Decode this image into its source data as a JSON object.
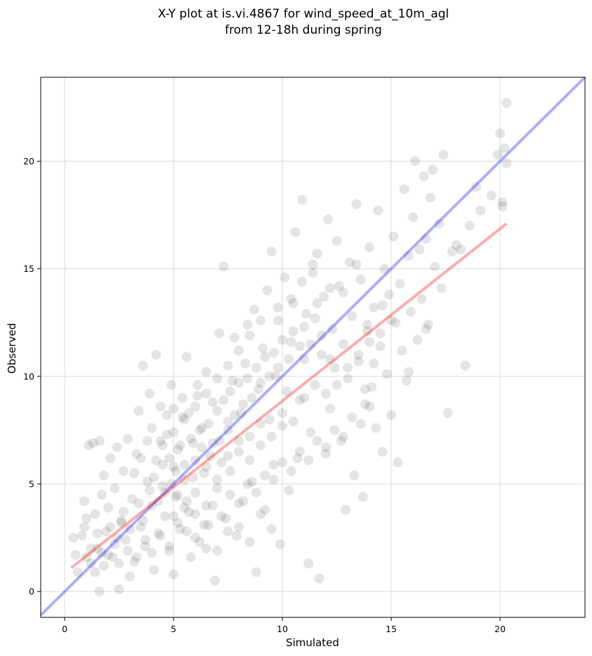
{
  "chart_data": {
    "type": "scatter",
    "title_lines": [
      "X-Y plot at is.vi.4867 for wind_speed_at_10m_agl",
      "from 12-18h during spring"
    ],
    "xlabel": "Simulated",
    "ylabel": "Observed",
    "xlim": [
      -1.1,
      23.9
    ],
    "ylim": [
      -1.2,
      23.9
    ],
    "xticks": [
      0,
      5,
      10,
      15,
      20
    ],
    "yticks": [
      0,
      5,
      10,
      15,
      20
    ],
    "grid": true,
    "point_color": "#000000",
    "point_opacity": 0.1,
    "one_to_one_line": {
      "x": [
        -1.1,
        23.9
      ],
      "y": [
        -1.1,
        23.9
      ],
      "color": "#0000ff",
      "opacity": 0.32
    },
    "regression_line": {
      "x": [
        0.3,
        20.3
      ],
      "y": [
        1.1,
        17.1
      ],
      "color": "#ff0000",
      "opacity": 0.32
    },
    "points": [
      [
        0.4,
        2.5
      ],
      [
        0.5,
        1.7
      ],
      [
        0.6,
        0.9
      ],
      [
        0.8,
        2.6
      ],
      [
        0.9,
        4.2
      ],
      [
        1.0,
        3.4
      ],
      [
        1.1,
        6.8
      ],
      [
        1.2,
        1.3
      ],
      [
        1.3,
        6.9
      ],
      [
        1.4,
        3.6
      ],
      [
        1.5,
        2.0
      ],
      [
        1.6,
        7.0
      ],
      [
        1.6,
        0.0
      ],
      [
        1.7,
        4.5
      ],
      [
        1.8,
        5.4
      ],
      [
        1.9,
        2.8
      ],
      [
        2.0,
        3.9
      ],
      [
        2.1,
        6.2
      ],
      [
        2.2,
        1.6
      ],
      [
        2.3,
        4.8
      ],
      [
        2.4,
        6.7
      ],
      [
        2.5,
        0.1
      ],
      [
        2.6,
        3.2
      ],
      [
        2.7,
        5.6
      ],
      [
        2.8,
        2.4
      ],
      [
        2.9,
        7.1
      ],
      [
        3.0,
        0.7
      ],
      [
        3.1,
        4.3
      ],
      [
        3.2,
        1.4
      ],
      [
        3.3,
        6.4
      ],
      [
        3.4,
        8.4
      ],
      [
        3.5,
        3.0
      ],
      [
        3.6,
        10.5
      ],
      [
        3.7,
        2.1
      ],
      [
        3.8,
        5.1
      ],
      [
        3.9,
        9.2
      ],
      [
        4.0,
        4.0
      ],
      [
        4.1,
        1.0
      ],
      [
        4.2,
        6.1
      ],
      [
        4.2,
        11.0
      ],
      [
        4.3,
        2.7
      ],
      [
        4.4,
        8.6
      ],
      [
        4.5,
        4.9
      ],
      [
        4.6,
        3.5
      ],
      [
        4.7,
        7.3
      ],
      [
        4.8,
        1.9
      ],
      [
        4.9,
        9.6
      ],
      [
        5.0,
        5.8
      ],
      [
        5.0,
        0.8
      ],
      [
        5.1,
        4.4
      ],
      [
        5.2,
        6.6
      ],
      [
        5.3,
        2.9
      ],
      [
        5.4,
        8.1
      ],
      [
        5.5,
        5.2
      ],
      [
        5.6,
        10.9
      ],
      [
        5.7,
        3.7
      ],
      [
        5.8,
        1.6
      ],
      [
        5.9,
        6.9
      ],
      [
        6.0,
        4.6
      ],
      [
        6.1,
        9.1
      ],
      [
        6.2,
        2.3
      ],
      [
        6.3,
        7.6
      ],
      [
        6.4,
        5.5
      ],
      [
        6.5,
        10.2
      ],
      [
        6.6,
        3.1
      ],
      [
        6.7,
        6.3
      ],
      [
        6.8,
        8.8
      ],
      [
        6.9,
        0.5
      ],
      [
        7.0,
        4.8
      ],
      [
        7.1,
        12.0
      ],
      [
        7.2,
        6.0
      ],
      [
        7.3,
        15.1
      ],
      [
        7.4,
        3.4
      ],
      [
        7.5,
        7.9
      ],
      [
        7.6,
        5.6
      ],
      [
        7.7,
        9.8
      ],
      [
        7.8,
        11.8
      ],
      [
        7.9,
        2.6
      ],
      [
        8.0,
        6.5
      ],
      [
        8.1,
        8.3
      ],
      [
        8.2,
        4.2
      ],
      [
        8.3,
        10.6
      ],
      [
        8.4,
        12.4
      ],
      [
        8.5,
        7.2
      ],
      [
        8.6,
        5.1
      ],
      [
        8.7,
        13.1
      ],
      [
        8.8,
        0.9
      ],
      [
        8.9,
        9.4
      ],
      [
        9.0,
        6.8
      ],
      [
        9.1,
        11.3
      ],
      [
        9.2,
        3.8
      ],
      [
        9.3,
        14.0
      ],
      [
        9.4,
        8.0
      ],
      [
        9.5,
        15.8
      ],
      [
        9.6,
        5.9
      ],
      [
        9.7,
        10.0
      ],
      [
        9.8,
        12.6
      ],
      [
        9.9,
        2.2
      ],
      [
        10.0,
        7.7
      ],
      [
        10.1,
        14.6
      ],
      [
        10.2,
        9.3
      ],
      [
        10.3,
        4.7
      ],
      [
        10.4,
        11.6
      ],
      [
        10.5,
        13.4
      ],
      [
        10.6,
        16.7
      ],
      [
        10.7,
        6.2
      ],
      [
        10.8,
        8.9
      ],
      [
        10.9,
        18.2
      ],
      [
        11.0,
        10.8
      ],
      [
        11.1,
        12.9
      ],
      [
        11.2,
        1.3
      ],
      [
        11.3,
        7.4
      ],
      [
        11.4,
        14.8
      ],
      [
        11.5,
        9.6
      ],
      [
        11.6,
        15.7
      ],
      [
        11.7,
        0.6
      ],
      [
        11.8,
        11.0
      ],
      [
        11.9,
        13.7
      ],
      [
        12.0,
        6.4
      ],
      [
        12.1,
        17.3
      ],
      [
        12.2,
        8.5
      ],
      [
        12.3,
        12.2
      ],
      [
        12.4,
        10.4
      ],
      [
        12.5,
        16.3
      ],
      [
        12.6,
        14.2
      ],
      [
        12.7,
        7.0
      ],
      [
        12.8,
        11.5
      ],
      [
        12.9,
        3.8
      ],
      [
        13.0,
        9.9
      ],
      [
        13.1,
        15.3
      ],
      [
        13.2,
        12.8
      ],
      [
        13.3,
        5.4
      ],
      [
        13.4,
        18.0
      ],
      [
        13.5,
        10.7
      ],
      [
        13.6,
        14.5
      ],
      [
        13.7,
        4.4
      ],
      [
        13.8,
        8.7
      ],
      [
        13.9,
        12.1
      ],
      [
        14.0,
        16.0
      ],
      [
        14.1,
        9.5
      ],
      [
        14.2,
        13.2
      ],
      [
        14.3,
        7.6
      ],
      [
        14.4,
        17.7
      ],
      [
        14.5,
        11.4
      ],
      [
        14.6,
        6.5
      ],
      [
        14.7,
        15.0
      ],
      [
        14.8,
        10.1
      ],
      [
        14.9,
        13.8
      ],
      [
        15.0,
        8.2
      ],
      [
        15.1,
        16.5
      ],
      [
        15.2,
        12.5
      ],
      [
        15.3,
        6.0
      ],
      [
        15.4,
        14.3
      ],
      [
        15.5,
        11.2
      ],
      [
        15.6,
        18.7
      ],
      [
        15.7,
        9.8
      ],
      [
        15.8,
        15.6
      ],
      [
        15.9,
        13.0
      ],
      [
        16.0,
        17.4
      ],
      [
        16.1,
        20.0
      ],
      [
        16.2,
        11.7
      ],
      [
        16.3,
        15.9
      ],
      [
        16.4,
        13.6
      ],
      [
        16.5,
        19.3
      ],
      [
        16.6,
        16.4
      ],
      [
        16.7,
        12.4
      ],
      [
        16.8,
        18.3
      ],
      [
        16.9,
        19.6
      ],
      [
        17.0,
        15.1
      ],
      [
        17.2,
        17.1
      ],
      [
        17.4,
        20.3
      ],
      [
        17.6,
        8.3
      ],
      [
        17.8,
        15.8
      ],
      [
        18.0,
        16.1
      ],
      [
        18.4,
        10.5
      ],
      [
        18.6,
        17.0
      ],
      [
        18.9,
        18.8
      ],
      [
        19.1,
        17.7
      ],
      [
        19.6,
        18.4
      ],
      [
        19.9,
        20.3
      ],
      [
        20.0,
        21.3
      ],
      [
        20.1,
        18.1
      ],
      [
        20.2,
        20.6
      ],
      [
        20.3,
        22.7
      ],
      [
        20.3,
        19.9
      ],
      [
        20.1,
        17.9
      ],
      [
        18.2,
        15.9
      ],
      [
        17.3,
        14.1
      ],
      [
        16.6,
        12.2
      ],
      [
        15.8,
        10.2
      ],
      [
        2.0,
        1.7
      ],
      [
        2.3,
        2.2
      ],
      [
        2.6,
        3.3
      ],
      [
        3.0,
        2.9
      ],
      [
        3.4,
        4.1
      ],
      [
        3.6,
        3.3
      ],
      [
        3.9,
        4.7
      ],
      [
        4.1,
        5.3
      ],
      [
        4.3,
        4.2
      ],
      [
        4.5,
        5.9
      ],
      [
        4.6,
        4.6
      ],
      [
        4.8,
        6.2
      ],
      [
        4.9,
        5.0
      ],
      [
        5.1,
        5.6
      ],
      [
        5.2,
        4.5
      ],
      [
        5.3,
        6.8
      ],
      [
        5.5,
        5.9
      ],
      [
        5.6,
        4.2
      ],
      [
        5.8,
        7.1
      ],
      [
        5.9,
        5.3
      ],
      [
        6.0,
        6.1
      ],
      [
        6.2,
        7.5
      ],
      [
        6.3,
        6.7
      ],
      [
        6.5,
        5.8
      ],
      [
        6.6,
        7.8
      ],
      [
        6.8,
        6.9
      ],
      [
        7.0,
        8.4
      ],
      [
        7.1,
        7.0
      ],
      [
        7.3,
        8.9
      ],
      [
        7.5,
        7.5
      ],
      [
        7.6,
        9.3
      ],
      [
        7.8,
        8.2
      ],
      [
        8.0,
        9.7
      ],
      [
        8.2,
        8.7
      ],
      [
        8.4,
        9.9
      ],
      [
        8.6,
        9.0
      ],
      [
        8.8,
        10.4
      ],
      [
        9.0,
        9.7
      ],
      [
        9.2,
        10.9
      ],
      [
        9.4,
        10.0
      ],
      [
        9.6,
        11.1
      ],
      [
        9.8,
        10.4
      ],
      [
        10.0,
        11.7
      ],
      [
        10.3,
        10.8
      ],
      [
        10.5,
        12.1
      ],
      [
        10.8,
        11.4
      ],
      [
        11.0,
        12.3
      ],
      [
        11.3,
        11.5
      ],
      [
        11.5,
        12.7
      ],
      [
        11.8,
        11.9
      ],
      [
        3.2,
        5.5
      ],
      [
        3.5,
        6.2
      ],
      [
        3.8,
        7.0
      ],
      [
        4.0,
        7.6
      ],
      [
        4.4,
        7.0
      ],
      [
        4.7,
        8.2
      ],
      [
        5.0,
        8.5
      ],
      [
        5.4,
        9.0
      ],
      [
        5.7,
        8.3
      ],
      [
        6.1,
        9.6
      ],
      [
        2.5,
        1.3
      ],
      [
        2.9,
        1.9
      ],
      [
        3.3,
        1.6
      ],
      [
        3.7,
        2.4
      ],
      [
        4.0,
        1.8
      ],
      [
        4.4,
        2.6
      ],
      [
        4.8,
        2.1
      ],
      [
        5.2,
        3.2
      ],
      [
        5.6,
        2.8
      ],
      [
        6.0,
        3.6
      ],
      [
        6.4,
        3.1
      ],
      [
        6.8,
        4.0
      ],
      [
        7.2,
        3.5
      ],
      [
        7.6,
        4.5
      ],
      [
        8.0,
        4.1
      ],
      [
        8.4,
        5.0
      ],
      [
        8.8,
        4.6
      ],
      [
        9.2,
        5.4
      ],
      [
        9.6,
        5.2
      ],
      [
        10.0,
        6.0
      ],
      [
        10.4,
        5.6
      ],
      [
        10.8,
        6.5
      ],
      [
        11.2,
        6.1
      ],
      [
        11.6,
        7.0
      ],
      [
        12.0,
        6.7
      ],
      [
        12.4,
        7.5
      ],
      [
        12.8,
        7.2
      ],
      [
        13.2,
        8.1
      ],
      [
        13.6,
        7.8
      ],
      [
        14.0,
        8.6
      ],
      [
        1.2,
        2.0
      ],
      [
        1.5,
        2.7
      ],
      [
        1.8,
        1.2
      ],
      [
        2.1,
        3.0
      ],
      [
        2.4,
        2.5
      ],
      [
        2.7,
        3.7
      ],
      [
        1.0,
        1.6
      ],
      [
        1.4,
        0.9
      ],
      [
        0.9,
        3.0
      ],
      [
        1.7,
        1.8
      ],
      [
        6.5,
        4.0
      ],
      [
        7.0,
        5.2
      ],
      [
        7.5,
        6.3
      ],
      [
        8.0,
        7.0
      ],
      [
        8.5,
        6.1
      ],
      [
        9.0,
        7.8
      ],
      [
        9.5,
        7.2
      ],
      [
        10.0,
        8.3
      ],
      [
        10.5,
        7.9
      ],
      [
        11.0,
        9.0
      ],
      [
        5.0,
        3.5
      ],
      [
        5.5,
        3.9
      ],
      [
        6.0,
        2.5
      ],
      [
        6.5,
        2.0
      ],
      [
        7.0,
        1.9
      ],
      [
        7.5,
        2.8
      ],
      [
        8.0,
        3.0
      ],
      [
        8.5,
        2.3
      ],
      [
        9.0,
        3.6
      ],
      [
        9.5,
        2.9
      ],
      [
        4.5,
        6.8
      ],
      [
        5.0,
        7.4
      ],
      [
        5.5,
        8.0
      ],
      [
        6.0,
        8.6
      ],
      [
        6.5,
        9.2
      ],
      [
        7.0,
        9.9
      ],
      [
        7.5,
        10.5
      ],
      [
        8.0,
        11.2
      ],
      [
        8.5,
        11.9
      ],
      [
        9.0,
        12.6
      ],
      [
        12.0,
        9.2
      ],
      [
        12.5,
        9.6
      ],
      [
        13.0,
        10.4
      ],
      [
        13.5,
        11.0
      ],
      [
        14.0,
        11.6
      ],
      [
        14.5,
        12.0
      ],
      [
        15.0,
        12.6
      ],
      [
        13.8,
        9.4
      ],
      [
        14.2,
        10.6
      ],
      [
        12.2,
        10.8
      ],
      [
        11.6,
        13.4
      ],
      [
        12.2,
        14.1
      ],
      [
        12.8,
        13.9
      ],
      [
        13.4,
        15.2
      ],
      [
        10.4,
        13.6
      ],
      [
        10.9,
        14.4
      ],
      [
        9.8,
        13.2
      ],
      [
        11.4,
        15.2
      ],
      [
        13.9,
        12.4
      ],
      [
        14.6,
        13.3
      ]
    ]
  }
}
